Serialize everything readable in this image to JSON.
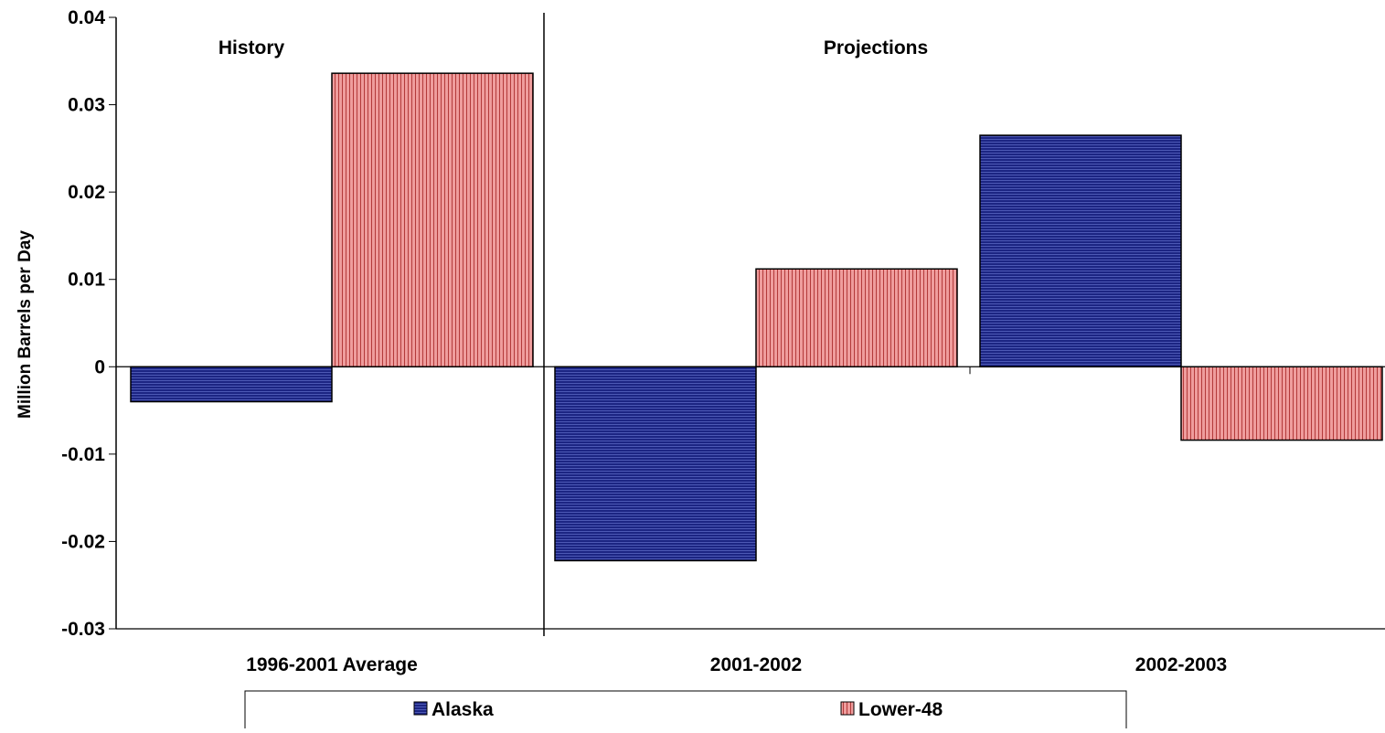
{
  "chart_data": {
    "type": "bar",
    "ylabel": "Million Barrels per Day",
    "ylim": [
      -0.03,
      0.04
    ],
    "yticks": [
      0.04,
      0.03,
      0.02,
      0.01,
      0,
      -0.01,
      -0.02,
      -0.03
    ],
    "ytick_labels": [
      "0.04",
      "0.03",
      "0.02",
      "0.01",
      "0",
      "-0.01",
      "-0.02",
      "-0.03"
    ],
    "categories": [
      "1996-2001 Average",
      "2001-2002",
      "2002-2003"
    ],
    "series": [
      {
        "name": "Alaska",
        "values": [
          -0.004,
          -0.0222,
          0.0265
        ],
        "color": "#1c2583"
      },
      {
        "name": "Lower-48",
        "values": [
          0.0336,
          0.0112,
          -0.0084
        ],
        "color": "#e07a7a"
      }
    ],
    "annotations": [
      {
        "text": "History",
        "section": "history"
      },
      {
        "text": "Projections",
        "section": "projections"
      }
    ],
    "grid": false,
    "legend": {
      "position": "bottom",
      "entries": [
        "Alaska",
        "Lower-48"
      ]
    }
  }
}
